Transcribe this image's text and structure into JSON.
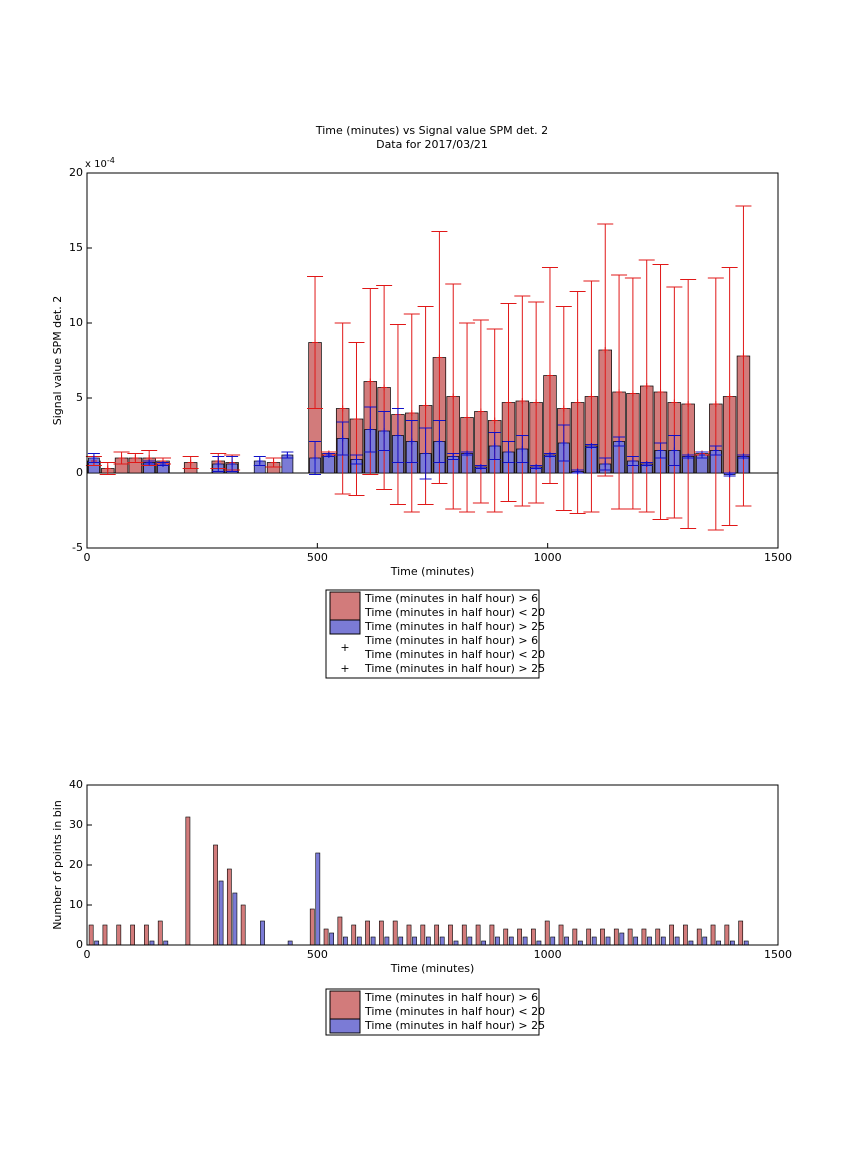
{
  "chart_data": [
    {
      "type": "errorbar",
      "title": "Time (minutes) vs Signal value SPM det. 2",
      "subtitle": "Data for 2017/03/21",
      "xlabel": "Time (minutes)",
      "ylabel": "Signal value SPM det. 2",
      "y_scale_label": {
        "base": "x 10",
        "exponent": "-4"
      },
      "x": [
        15,
        45,
        75,
        105,
        135,
        165,
        195,
        225,
        255,
        285,
        315,
        345,
        375,
        405,
        435,
        465,
        495,
        525,
        555,
        585,
        615,
        645,
        675,
        705,
        735,
        765,
        795,
        825,
        855,
        885,
        915,
        945,
        975,
        1005,
        1035,
        1065,
        1095,
        1125,
        1155,
        1185,
        1215,
        1245,
        1275,
        1305,
        1335,
        1365,
        1395,
        1425
      ],
      "xlim": [
        0,
        1500
      ],
      "xticks": [
        0,
        500,
        1000,
        1500
      ],
      "ylim": [
        -5,
        20
      ],
      "yticks": [
        -5,
        0,
        5,
        10,
        15,
        20
      ],
      "legend": "below",
      "series": [
        {
          "name": [
            "Time (minutes in half hour) > 6",
            "Time (minutes in half hour) < 20"
          ],
          "color": "#d27b7b",
          "error_color": "#e01818",
          "values": [
            0.8,
            0.3,
            1.0,
            1.0,
            1.0,
            0.8,
            null,
            0.7,
            null,
            0.8,
            0.7,
            null,
            null,
            0.7,
            null,
            null,
            8.7,
            1.3,
            4.3,
            3.6,
            6.1,
            5.7,
            3.9,
            4.0,
            4.5,
            7.7,
            5.1,
            3.7,
            4.1,
            3.5,
            4.7,
            4.8,
            4.7,
            6.5,
            4.3,
            4.7,
            5.1,
            8.2,
            5.4,
            5.3,
            5.8,
            5.4,
            4.7,
            4.6,
            1.3,
            4.6,
            5.1,
            7.8
          ],
          "errors": [
            0.3,
            0.4,
            0.4,
            0.3,
            0.5,
            0.2,
            null,
            0.4,
            null,
            0.5,
            0.5,
            null,
            null,
            0.3,
            null,
            null,
            4.4,
            0.1,
            5.7,
            5.1,
            6.2,
            6.8,
            6.0,
            6.6,
            6.6,
            8.4,
            7.5,
            6.3,
            6.1,
            6.1,
            6.6,
            7.0,
            6.7,
            7.2,
            6.8,
            7.4,
            7.7,
            8.4,
            7.8,
            7.7,
            8.4,
            8.5,
            7.7,
            8.3,
            0.1,
            8.4,
            8.6,
            10.0
          ]
        },
        {
          "name": [
            "Time (minutes in half hour) > 25"
          ],
          "color": "#7b7bd6",
          "error_color": "#1010c8",
          "values": [
            1.0,
            null,
            null,
            null,
            0.7,
            0.6,
            null,
            null,
            null,
            0.6,
            0.6,
            null,
            0.8,
            null,
            1.2,
            null,
            1.0,
            1.2,
            2.3,
            0.9,
            2.9,
            2.8,
            2.5,
            2.1,
            1.3,
            2.1,
            1.1,
            1.3,
            0.4,
            1.8,
            1.4,
            1.6,
            0.4,
            1.2,
            2.0,
            0.1,
            1.8,
            0.6,
            2.1,
            0.8,
            0.6,
            1.5,
            1.5,
            1.1,
            1.2,
            1.5,
            -0.1,
            1.1
          ],
          "errors": [
            0.3,
            null,
            null,
            null,
            0.1,
            0.1,
            null,
            null,
            null,
            0.5,
            0.5,
            null,
            0.3,
            null,
            0.2,
            null,
            1.1,
            0.1,
            1.1,
            0.3,
            1.5,
            1.3,
            1.8,
            1.4,
            1.7,
            1.4,
            0.2,
            0.1,
            0.1,
            0.9,
            0.7,
            0.9,
            0.1,
            0.1,
            1.2,
            0.1,
            0.1,
            0.4,
            0.3,
            0.3,
            0.1,
            0.5,
            1.0,
            0.1,
            0.2,
            0.3,
            0.1,
            0.1
          ]
        }
      ]
    },
    {
      "type": "bar",
      "xlabel": "Time (minutes)",
      "ylabel": "Number of points in bin",
      "x": [
        15,
        45,
        75,
        105,
        135,
        165,
        195,
        225,
        255,
        285,
        315,
        345,
        375,
        405,
        435,
        465,
        495,
        525,
        555,
        585,
        615,
        645,
        675,
        705,
        735,
        765,
        795,
        825,
        855,
        885,
        915,
        945,
        975,
        1005,
        1035,
        1065,
        1095,
        1125,
        1155,
        1185,
        1215,
        1245,
        1275,
        1305,
        1335,
        1365,
        1395,
        1425
      ],
      "xlim": [
        0,
        1500
      ],
      "xticks": [
        0,
        500,
        1000,
        1500
      ],
      "ylim": [
        0,
        40
      ],
      "yticks": [
        0,
        10,
        20,
        30,
        40
      ],
      "legend": "below",
      "series": [
        {
          "name": [
            "Time (minutes in half hour) > 6",
            "Time (minutes in half hour) < 20"
          ],
          "color": "#d27b7b",
          "values": [
            5,
            5,
            5,
            5,
            5,
            6,
            0,
            32,
            0,
            25,
            19,
            10,
            0,
            0,
            0,
            0,
            9,
            4,
            7,
            5,
            6,
            6,
            6,
            5,
            5,
            5,
            5,
            5,
            5,
            5,
            4,
            4,
            4,
            6,
            5,
            4,
            4,
            4,
            4,
            4,
            4,
            4,
            5,
            5,
            4,
            5,
            5,
            6
          ]
        },
        {
          "name": [
            "Time (minutes in half hour) > 25"
          ],
          "color": "#7b7bd6",
          "values": [
            1,
            0,
            0,
            0,
            1,
            1,
            0,
            0,
            0,
            16,
            13,
            0,
            6,
            0,
            1,
            0,
            23,
            3,
            2,
            2,
            2,
            2,
            2,
            2,
            2,
            2,
            1,
            2,
            1,
            2,
            2,
            2,
            1,
            2,
            2,
            1,
            2,
            2,
            3,
            2,
            2,
            2,
            2,
            1,
            2,
            1,
            1,
            1
          ]
        }
      ]
    }
  ]
}
